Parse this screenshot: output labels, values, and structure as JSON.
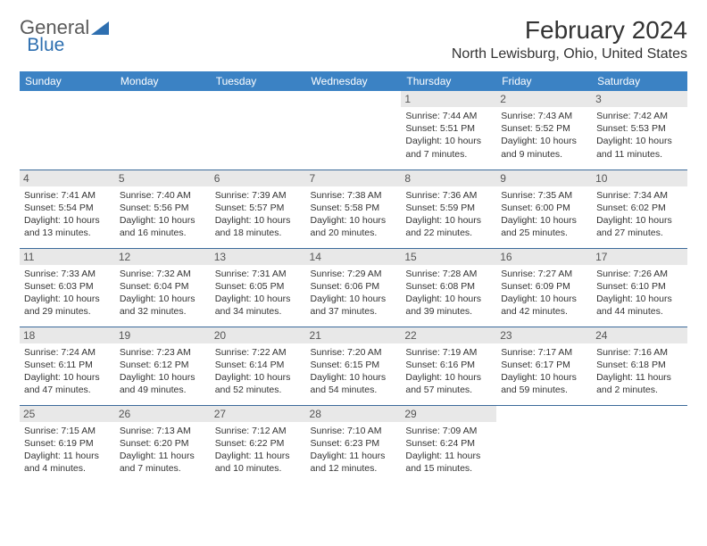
{
  "logo": {
    "text_a": "General",
    "text_b": "Blue",
    "color_a": "#5a5a5a",
    "color_b": "#2e6fb0",
    "tri_color": "#2e6fb0"
  },
  "title": "February 2024",
  "location": "North Lewisburg, Ohio, United States",
  "header_bg": "#3b82c4",
  "header_fg": "#ffffff",
  "daynum_bg": "#e8e8e8",
  "border_color": "#3b6a9a",
  "day_labels": [
    "Sunday",
    "Monday",
    "Tuesday",
    "Wednesday",
    "Thursday",
    "Friday",
    "Saturday"
  ],
  "weeks": [
    [
      null,
      null,
      null,
      null,
      {
        "n": "1",
        "sr": "7:44 AM",
        "ss": "5:51 PM",
        "dl": "10 hours and 7 minutes."
      },
      {
        "n": "2",
        "sr": "7:43 AM",
        "ss": "5:52 PM",
        "dl": "10 hours and 9 minutes."
      },
      {
        "n": "3",
        "sr": "7:42 AM",
        "ss": "5:53 PM",
        "dl": "10 hours and 11 minutes."
      }
    ],
    [
      {
        "n": "4",
        "sr": "7:41 AM",
        "ss": "5:54 PM",
        "dl": "10 hours and 13 minutes."
      },
      {
        "n": "5",
        "sr": "7:40 AM",
        "ss": "5:56 PM",
        "dl": "10 hours and 16 minutes."
      },
      {
        "n": "6",
        "sr": "7:39 AM",
        "ss": "5:57 PM",
        "dl": "10 hours and 18 minutes."
      },
      {
        "n": "7",
        "sr": "7:38 AM",
        "ss": "5:58 PM",
        "dl": "10 hours and 20 minutes."
      },
      {
        "n": "8",
        "sr": "7:36 AM",
        "ss": "5:59 PM",
        "dl": "10 hours and 22 minutes."
      },
      {
        "n": "9",
        "sr": "7:35 AM",
        "ss": "6:00 PM",
        "dl": "10 hours and 25 minutes."
      },
      {
        "n": "10",
        "sr": "7:34 AM",
        "ss": "6:02 PM",
        "dl": "10 hours and 27 minutes."
      }
    ],
    [
      {
        "n": "11",
        "sr": "7:33 AM",
        "ss": "6:03 PM",
        "dl": "10 hours and 29 minutes."
      },
      {
        "n": "12",
        "sr": "7:32 AM",
        "ss": "6:04 PM",
        "dl": "10 hours and 32 minutes."
      },
      {
        "n": "13",
        "sr": "7:31 AM",
        "ss": "6:05 PM",
        "dl": "10 hours and 34 minutes."
      },
      {
        "n": "14",
        "sr": "7:29 AM",
        "ss": "6:06 PM",
        "dl": "10 hours and 37 minutes."
      },
      {
        "n": "15",
        "sr": "7:28 AM",
        "ss": "6:08 PM",
        "dl": "10 hours and 39 minutes."
      },
      {
        "n": "16",
        "sr": "7:27 AM",
        "ss": "6:09 PM",
        "dl": "10 hours and 42 minutes."
      },
      {
        "n": "17",
        "sr": "7:26 AM",
        "ss": "6:10 PM",
        "dl": "10 hours and 44 minutes."
      }
    ],
    [
      {
        "n": "18",
        "sr": "7:24 AM",
        "ss": "6:11 PM",
        "dl": "10 hours and 47 minutes."
      },
      {
        "n": "19",
        "sr": "7:23 AM",
        "ss": "6:12 PM",
        "dl": "10 hours and 49 minutes."
      },
      {
        "n": "20",
        "sr": "7:22 AM",
        "ss": "6:14 PM",
        "dl": "10 hours and 52 minutes."
      },
      {
        "n": "21",
        "sr": "7:20 AM",
        "ss": "6:15 PM",
        "dl": "10 hours and 54 minutes."
      },
      {
        "n": "22",
        "sr": "7:19 AM",
        "ss": "6:16 PM",
        "dl": "10 hours and 57 minutes."
      },
      {
        "n": "23",
        "sr": "7:17 AM",
        "ss": "6:17 PM",
        "dl": "10 hours and 59 minutes."
      },
      {
        "n": "24",
        "sr": "7:16 AM",
        "ss": "6:18 PM",
        "dl": "11 hours and 2 minutes."
      }
    ],
    [
      {
        "n": "25",
        "sr": "7:15 AM",
        "ss": "6:19 PM",
        "dl": "11 hours and 4 minutes."
      },
      {
        "n": "26",
        "sr": "7:13 AM",
        "ss": "6:20 PM",
        "dl": "11 hours and 7 minutes."
      },
      {
        "n": "27",
        "sr": "7:12 AM",
        "ss": "6:22 PM",
        "dl": "11 hours and 10 minutes."
      },
      {
        "n": "28",
        "sr": "7:10 AM",
        "ss": "6:23 PM",
        "dl": "11 hours and 12 minutes."
      },
      {
        "n": "29",
        "sr": "7:09 AM",
        "ss": "6:24 PM",
        "dl": "11 hours and 15 minutes."
      },
      null,
      null
    ]
  ],
  "labels": {
    "sunrise": "Sunrise: ",
    "sunset": "Sunset: ",
    "daylight": "Daylight: "
  }
}
